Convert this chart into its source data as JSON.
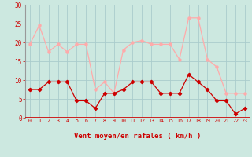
{
  "hours": [
    0,
    1,
    2,
    3,
    4,
    5,
    6,
    7,
    8,
    9,
    10,
    11,
    12,
    13,
    14,
    15,
    16,
    17,
    18,
    19,
    20,
    21,
    22,
    23
  ],
  "wind_avg": [
    7.5,
    7.5,
    9.5,
    9.5,
    9.5,
    4.5,
    4.5,
    2.5,
    6.5,
    6.5,
    7.5,
    9.5,
    9.5,
    9.5,
    6.5,
    6.5,
    6.5,
    11.5,
    9.5,
    7.5,
    4.5,
    4.5,
    1.0,
    2.5
  ],
  "wind_gust": [
    19.5,
    24.5,
    17.5,
    19.5,
    17.5,
    19.5,
    19.5,
    7.5,
    9.5,
    6.5,
    18.0,
    20.0,
    20.5,
    19.5,
    19.5,
    19.5,
    15.5,
    26.5,
    26.5,
    15.5,
    13.5,
    6.5,
    6.5,
    6.5
  ],
  "avg_color": "#cc0000",
  "gust_color": "#ffaaaa",
  "bg_color": "#cce8e0",
  "grid_color": "#aacccc",
  "xlabel": "Vent moyen/en rafales ( km/h )",
  "xlabel_color": "#cc0000",
  "tick_color": "#cc0000",
  "axis_line_color": "#cc0000",
  "ylim": [
    0,
    30
  ],
  "yticks": [
    0,
    5,
    10,
    15,
    20,
    25,
    30
  ]
}
